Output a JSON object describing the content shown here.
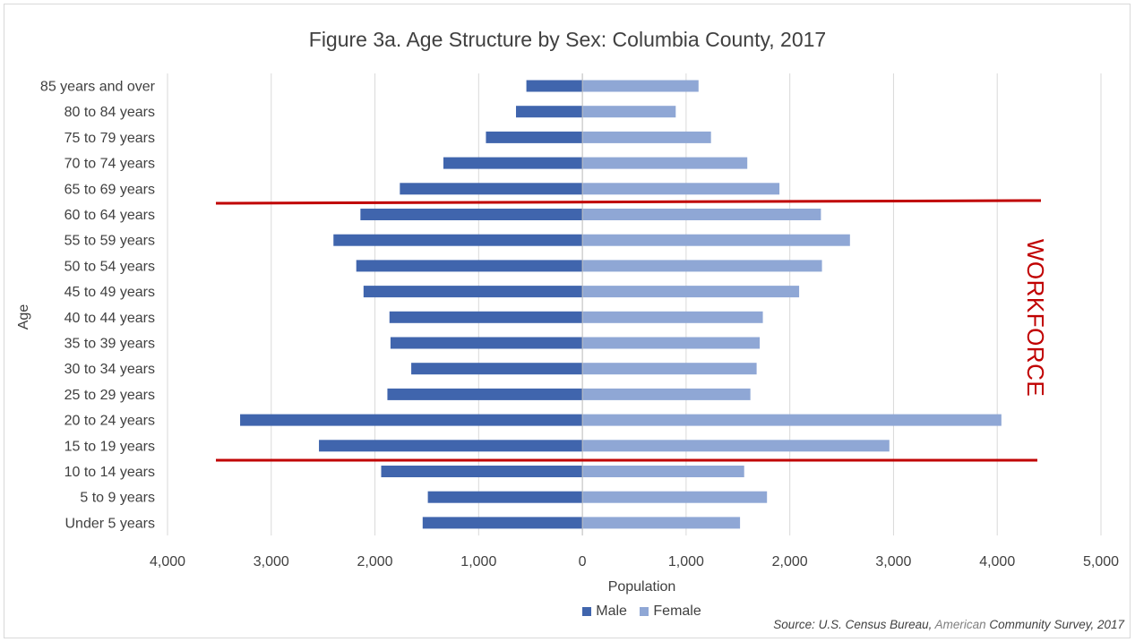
{
  "chart_data": {
    "type": "bar",
    "orientation": "horizontal",
    "title": "Figure 3a. Age Structure by Sex: Columbia County, 2017",
    "xlabel": "Population",
    "ylabel": "Age",
    "xlim": [
      -4000,
      5000
    ],
    "xticks": [
      -4000,
      -3000,
      -2000,
      -1000,
      0,
      1000,
      2000,
      3000,
      4000,
      5000
    ],
    "xtick_labels": [
      "4,000",
      "3,000",
      "2,000",
      "1,000",
      "0",
      "1,000",
      "2,000",
      "3,000",
      "4,000",
      "5,000"
    ],
    "grid": true,
    "legend_position": "bottom",
    "categories": [
      "85 years and over",
      "80 to 84 years",
      "75 to 79 years",
      "70 to 74 years",
      "65 to 69 years",
      "60 to 64 years",
      "55 to 59 years",
      "50 to 54 years",
      "45 to 49 years",
      "40 to 44 years",
      "35 to 39 years",
      "30 to 34 years",
      "25 to 29 years",
      "20 to 24 years",
      "15 to 19 years",
      "10 to 14 years",
      "5 to 9 years",
      "Under 5 years"
    ],
    "series": [
      {
        "name": "Male",
        "color": "#4065ad",
        "values": [
          540,
          640,
          930,
          1340,
          1760,
          2140,
          2400,
          2180,
          2110,
          1860,
          1850,
          1650,
          1880,
          3300,
          2540,
          1940,
          1490,
          1540
        ]
      },
      {
        "name": "Female",
        "color": "#8fa7d5",
        "values": [
          1120,
          900,
          1240,
          1590,
          1900,
          2300,
          2580,
          2310,
          2090,
          1740,
          1710,
          1680,
          1620,
          4040,
          2960,
          1560,
          1780,
          1520
        ]
      }
    ],
    "annotation": {
      "text": "WORKFORCE",
      "color": "#c00000"
    }
  },
  "source": {
    "prefix": "Source: U.S. Census Bureau, ",
    "accent": "American",
    "suffix": " Community Survey, 2017"
  }
}
